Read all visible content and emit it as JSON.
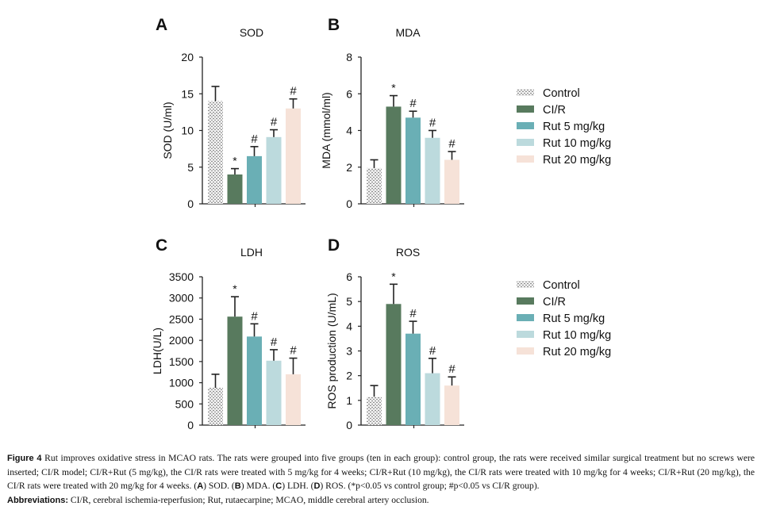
{
  "groups": [
    {
      "name": "Control",
      "color": "#ffffff",
      "pattern": "dotted"
    },
    {
      "name": "CI/R",
      "color": "#587a5e"
    },
    {
      "name": "Rut 5 mg/kg",
      "color": "#6aafb5"
    },
    {
      "name": "Rut 10 mg/kg",
      "color": "#bcdadd"
    },
    {
      "name": "Rut 20 mg/kg",
      "color": "#f6e2d8"
    }
  ],
  "chart_data": [
    {
      "type": "bar",
      "panel": "A",
      "title": "SOD",
      "xlabel": "",
      "ylabel": "SOD (U/ml)",
      "ylim": [
        0,
        20
      ],
      "yticks": [
        0,
        5,
        10,
        15,
        20
      ],
      "categories": [
        "Control",
        "CI/R",
        "Rut 5 mg/kg",
        "Rut 10 mg/kg",
        "Rut 20 mg/kg"
      ],
      "values": [
        14,
        4,
        6.5,
        9.1,
        13
      ],
      "errors": [
        2.0,
        0.8,
        1.3,
        1.0,
        1.3
      ],
      "annotations": [
        "",
        "*",
        "#",
        "#",
        "#"
      ],
      "legend": "none"
    },
    {
      "type": "bar",
      "panel": "B",
      "title": "MDA",
      "xlabel": "",
      "ylabel": "MDA (mmol/ml)",
      "ylim": [
        0,
        8
      ],
      "yticks": [
        0,
        2,
        4,
        6,
        8
      ],
      "categories": [
        "Control",
        "CI/R",
        "Rut 5 mg/kg",
        "Rut 10 mg/kg",
        "Rut 20 mg/kg"
      ],
      "values": [
        1.95,
        5.3,
        4.7,
        3.6,
        2.4
      ],
      "errors": [
        0.45,
        0.6,
        0.35,
        0.4,
        0.45
      ],
      "annotations": [
        "",
        "*",
        "#",
        "#",
        "#"
      ],
      "legend": "right"
    },
    {
      "type": "bar",
      "panel": "C",
      "title": "LDH",
      "xlabel": "",
      "ylabel": "LDH(U/L)",
      "ylim": [
        0,
        3500
      ],
      "yticks": [
        0,
        500,
        1000,
        1500,
        2000,
        2500,
        3000,
        3500
      ],
      "categories": [
        "Control",
        "CI/R",
        "Rut 5 mg/kg",
        "Rut 10 mg/kg",
        "Rut 20 mg/kg"
      ],
      "values": [
        880,
        2560,
        2090,
        1520,
        1200
      ],
      "errors": [
        320,
        470,
        300,
        260,
        380
      ],
      "annotations": [
        "",
        "*",
        "#",
        "#",
        "#"
      ],
      "legend": "none"
    },
    {
      "type": "bar",
      "panel": "D",
      "title": "ROS",
      "xlabel": "",
      "ylabel": "ROS production (U/mL)",
      "ylim": [
        0,
        6
      ],
      "yticks": [
        0,
        1,
        2,
        3,
        4,
        5,
        6
      ],
      "categories": [
        "Control",
        "CI/R",
        "Rut 5 mg/kg",
        "Rut 10 mg/kg",
        "Rut 20 mg/kg"
      ],
      "values": [
        1.15,
        4.9,
        3.7,
        2.1,
        1.6
      ],
      "errors": [
        0.45,
        0.8,
        0.5,
        0.6,
        0.35
      ],
      "annotations": [
        "",
        "*",
        "#",
        "#",
        "#"
      ],
      "legend": "right"
    }
  ],
  "legends": [
    {
      "items": [
        "Control",
        "CI/R",
        "Rut 5 mg/kg",
        "Rut 10 mg/kg",
        "Rut 20 mg/kg"
      ]
    },
    {
      "items": [
        "Control",
        "CI/R",
        "Rut 5 mg/kg",
        "Rut 10 mg/kg",
        "Rut 20 mg/kg"
      ]
    }
  ],
  "caption": {
    "figure_label": "Figure 4",
    "text_1": " Rut improves oxidative stress in MCAO rats. The rats were grouped into five groups (ten in each group): control group, the rats were received similar surgical treatment but no screws were inserted; CI/R model; CI/R+Rut (5 mg/kg), the CI/R rats were treated with 5 mg/kg for 4 weeks; CI/R+Rut (10 mg/kg), the CI/R rats were treated with 10 mg/kg for 4 weeks; CI/R+Rut (20 mg/kg), the CI/R rats were treated with 20 mg/kg for 4 weeks. (",
    "ref_a": "A",
    "text_a": ") SOD. (",
    "ref_b": "B",
    "text_b": ") MDA. (",
    "ref_c": "C",
    "text_c": ") LDH. (",
    "ref_d": "D",
    "text_d": ") ROS. (*p<0.05 vs control group; #p<0.05 vs CI/R group).",
    "abbr_label": "Abbreviations:",
    "abbr_text": " CI/R, cerebral ischemia-reperfusion; Rut, rutaecarpine; MCAO, middle cerebral artery occlusion."
  }
}
